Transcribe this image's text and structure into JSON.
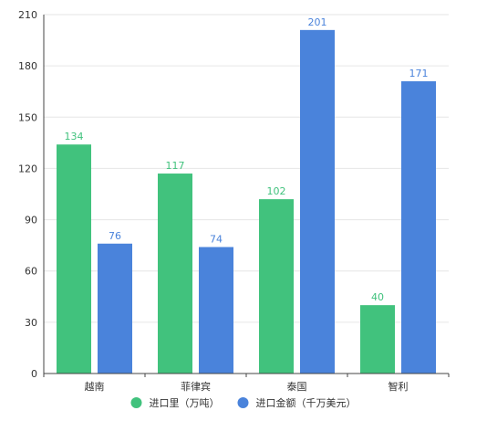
{
  "chart_data": {
    "type": "bar",
    "categories": [
      "越南",
      "菲律宾",
      "泰国",
      "智利"
    ],
    "series": [
      {
        "name": "进口里（万吨）",
        "values": [
          134,
          117,
          102,
          40
        ],
        "color": "#41c27d"
      },
      {
        "name": "进口金额（千万美元）",
        "values": [
          76,
          74,
          201,
          171
        ],
        "color": "#4a83db"
      }
    ],
    "y_ticks": [
      0,
      30,
      60,
      90,
      120,
      150,
      180,
      210
    ],
    "ylim": [
      0,
      210
    ],
    "grid": true,
    "legend_position": "bottom-center",
    "data_labels": true
  }
}
